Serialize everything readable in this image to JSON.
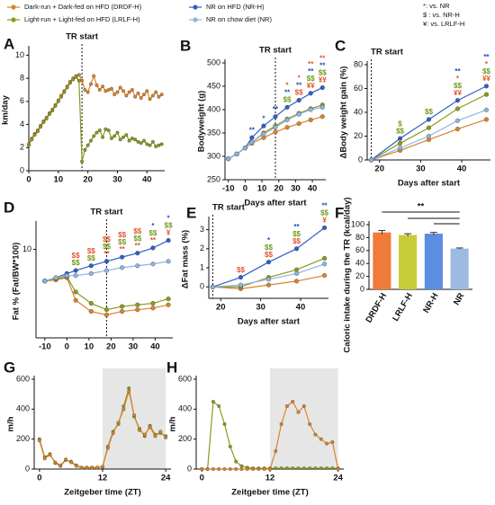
{
  "legend_title": null,
  "significance_key": [
    "*: vs. NR",
    "$ : vs. NR-H",
    "¥: vs. LRLF-H"
  ],
  "chart_data": [
    {
      "panel": "A",
      "type": "line",
      "ylabel": "km/day",
      "xlim": [
        0,
        46
      ],
      "ylim": [
        0,
        10.5
      ],
      "xticks": [
        0,
        10,
        20,
        30,
        40
      ],
      "yticks": [
        0,
        2,
        4,
        6,
        8,
        10
      ],
      "tr_start": {
        "x": 18,
        "label": "TR start"
      },
      "x": [
        0,
        1,
        2,
        3,
        4,
        5,
        6,
        7,
        8,
        9,
        10,
        11,
        12,
        13,
        14,
        15,
        16,
        17,
        18,
        19,
        20,
        21,
        22,
        23,
        24,
        25,
        26,
        27,
        28,
        29,
        30,
        31,
        32,
        33,
        34,
        35,
        36,
        37,
        38,
        39,
        40,
        41,
        42,
        43,
        44,
        45
      ],
      "series": [
        {
          "color": "#d9822b",
          "values": [
            2.3,
            2.8,
            3.2,
            3.5,
            3.9,
            4.3,
            4.6,
            5.0,
            5.3,
            5.7,
            6.1,
            6.5,
            6.9,
            7.3,
            7.7,
            8.0,
            8.2,
            8.3,
            7.8,
            7.0,
            6.8,
            7.5,
            8.2,
            7.4,
            7.0,
            7.3,
            6.9,
            7.0,
            7.1,
            6.6,
            6.8,
            7.2,
            6.9,
            6.5,
            6.8,
            7.0,
            6.4,
            6.7,
            6.3,
            6.6,
            6.9,
            6.2,
            6.5,
            6.8,
            6.4,
            6.6
          ]
        },
        {
          "color": "#8a9a1e",
          "values": [
            2.2,
            2.7,
            3.1,
            3.4,
            3.8,
            4.2,
            4.5,
            4.9,
            5.2,
            5.6,
            6.0,
            6.4,
            6.8,
            7.2,
            7.6,
            7.9,
            8.1,
            7.8,
            0.8,
            1.8,
            2.2,
            2.6,
            3.0,
            3.3,
            3.5,
            2.9,
            3.6,
            3.5,
            2.8,
            3.0,
            3.3,
            2.7,
            2.9,
            3.1,
            2.6,
            2.8,
            2.7,
            2.5,
            2.4,
            2.6,
            2.3,
            2.2,
            2.5,
            2.1,
            2.2,
            2.3
          ]
        }
      ]
    },
    {
      "panel": "B",
      "type": "line",
      "ylabel": "Bodyweight (g)",
      "xlabel": "Days after start",
      "xlim": [
        -12,
        48
      ],
      "ylim": [
        250,
        500
      ],
      "xticks": [
        -10,
        0,
        10,
        20,
        30,
        40
      ],
      "yticks": [
        250,
        300,
        350,
        400,
        450,
        500
      ],
      "tr_start": {
        "x": 18,
        "label": "TR start"
      },
      "x": [
        -10,
        -5,
        0,
        4,
        11,
        18,
        25,
        32,
        39,
        46
      ],
      "series": [
        {
          "name": "Dark-run + Dark-fed on HFD (DRDF-H)",
          "color": "#d9822b",
          "values": [
            295,
            305,
            318,
            328,
            340,
            352,
            362,
            370,
            378,
            385
          ]
        },
        {
          "name": "Light-run + Light-fed on HFD (LRLF-H)",
          "color": "#8a9a1e",
          "values": [
            295,
            305,
            318,
            330,
            350,
            365,
            380,
            392,
            402,
            410
          ]
        },
        {
          "name": "NR on HFD (NR-H)",
          "color": "#2f5fc4",
          "values": [
            295,
            305,
            318,
            340,
            365,
            385,
            405,
            420,
            435,
            447
          ]
        },
        {
          "name": "NR on chow diet (NR)",
          "color": "#8fb3e0",
          "values": [
            295,
            305,
            318,
            330,
            348,
            362,
            378,
            390,
            400,
            405
          ]
        }
      ],
      "sig": [
        {
          "x": 4,
          "labels": [
            {
              "text": "**",
              "color": "#1f4fbf"
            }
          ]
        },
        {
          "x": 11,
          "labels": [
            {
              "text": "*",
              "color": "#1f4fbf"
            }
          ]
        },
        {
          "x": 18,
          "labels": [
            {
              "text": "**",
              "color": "#1f4fbf"
            }
          ]
        },
        {
          "x": 25,
          "labels": [
            {
              "text": "$$",
              "color": "#6f9a1e"
            },
            {
              "text": "**",
              "color": "#1f4fbf"
            },
            {
              "text": "*",
              "color": "#e5542b"
            }
          ]
        },
        {
          "x": 32,
          "labels": [
            {
              "text": "$$",
              "color": "#e5542b"
            },
            {
              "text": "**",
              "color": "#1f4fbf"
            },
            {
              "text": "*",
              "color": "#e5542b"
            }
          ]
        },
        {
          "x": 39,
          "labels": [
            {
              "text": "¥¥",
              "color": "#e5542b"
            },
            {
              "text": "$$",
              "color": "#6f9a1e"
            },
            {
              "text": "**",
              "color": "#1f4fbf"
            },
            {
              "text": "**",
              "color": "#e5542b"
            }
          ]
        },
        {
          "x": 46,
          "labels": [
            {
              "text": "¥¥",
              "color": "#e5542b"
            },
            {
              "text": "$$",
              "color": "#6f9a1e"
            },
            {
              "text": "**",
              "color": "#1f4fbf"
            },
            {
              "text": "**",
              "color": "#e5542b"
            }
          ]
        }
      ]
    },
    {
      "panel": "C",
      "type": "line",
      "ylabel": "ΔBody weight gain (%)",
      "xlabel": "Days after start",
      "xlim": [
        17,
        47
      ],
      "ylim": [
        0,
        80
      ],
      "xticks": [
        20,
        30,
        40
      ],
      "yticks": [
        0,
        20,
        40,
        60,
        80
      ],
      "tr_start": {
        "x": 18,
        "label": "TR start"
      },
      "x": [
        18,
        25,
        32,
        39,
        46
      ],
      "series": [
        {
          "color": "#d9822b",
          "values": [
            0,
            8,
            17,
            26,
            34
          ]
        },
        {
          "color": "#8a9a1e",
          "values": [
            0,
            14,
            27,
            43,
            55
          ]
        },
        {
          "color": "#2f5fc4",
          "values": [
            0,
            18,
            34,
            50,
            62
          ]
        },
        {
          "color": "#8fb3e0",
          "values": [
            0,
            10,
            20,
            33,
            42
          ]
        }
      ],
      "sig": [
        {
          "x": 25,
          "labels": [
            {
              "text": "$$",
              "color": "#6f9a1e"
            },
            {
              "text": "$",
              "color": "#6f9a1e"
            }
          ]
        },
        {
          "x": 32,
          "labels": [
            {
              "text": "$$",
              "color": "#6f9a1e"
            }
          ]
        },
        {
          "x": 39,
          "labels": [
            {
              "text": "¥¥",
              "color": "#e5542b"
            },
            {
              "text": "$$",
              "color": "#6f9a1e"
            },
            {
              "text": "*",
              "color": "#e5542b"
            },
            {
              "text": "**",
              "color": "#1f4fbf"
            }
          ]
        },
        {
          "x": 46,
          "labels": [
            {
              "text": "¥¥",
              "color": "#e5542b"
            },
            {
              "text": "$$",
              "color": "#6f9a1e"
            },
            {
              "text": "*",
              "color": "#e5542b"
            },
            {
              "text": "**",
              "color": "#1f4fbf"
            }
          ]
        }
      ]
    },
    {
      "panel": "D",
      "type": "line",
      "ylabel": "Fat % (Fat/BW*100)",
      "ylog": true,
      "xlim": [
        -14,
        48
      ],
      "ylim": [
        3,
        14
      ],
      "xticks": [
        -10,
        0,
        10,
        20,
        30,
        40
      ],
      "yticks": [
        10
      ],
      "tr_start": {
        "x": 18,
        "label": "TR start"
      },
      "x": [
        -10,
        -5,
        0,
        4,
        11,
        18,
        25,
        32,
        39,
        46
      ],
      "series": [
        {
          "color": "#d9822b",
          "values": [
            6.5,
            6.6,
            6.8,
            5.0,
            4.3,
            4.1,
            4.3,
            4.4,
            4.5,
            4.7
          ]
        },
        {
          "color": "#8a9a1e",
          "values": [
            6.5,
            6.7,
            6.9,
            5.6,
            4.8,
            4.4,
            4.6,
            4.7,
            4.8,
            5.1
          ]
        },
        {
          "color": "#2f5fc4",
          "values": [
            6.5,
            6.8,
            7.2,
            7.5,
            8.0,
            8.5,
            9.0,
            9.5,
            10.2,
            11.3
          ]
        },
        {
          "color": "#8fb3e0",
          "values": [
            6.5,
            6.8,
            7.0,
            7.0,
            7.2,
            7.5,
            7.8,
            8.0,
            8.2,
            8.5
          ]
        }
      ],
      "sig": [
        {
          "x": 4,
          "labels": [
            {
              "text": "$$",
              "color": "#6f9a1e"
            },
            {
              "text": "$$",
              "color": "#e5542b"
            }
          ]
        },
        {
          "x": 11,
          "labels": [
            {
              "text": "$$",
              "color": "#6f9a1e"
            },
            {
              "text": "$$",
              "color": "#e5542b"
            }
          ]
        },
        {
          "x": 18,
          "labels": [
            {
              "text": "**",
              "color": "#e5542b"
            },
            {
              "text": "$$",
              "color": "#6f9a1e"
            },
            {
              "text": "$$",
              "color": "#e5542b"
            }
          ]
        },
        {
          "x": 25,
          "labels": [
            {
              "text": "**",
              "color": "#e5542b"
            },
            {
              "text": "$$",
              "color": "#6f9a1e"
            },
            {
              "text": "$$",
              "color": "#e5542b"
            }
          ]
        },
        {
          "x": 32,
          "labels": [
            {
              "text": "**",
              "color": "#e5542b"
            },
            {
              "text": "$$",
              "color": "#6f9a1e"
            },
            {
              "text": "$$",
              "color": "#e5542b"
            }
          ]
        },
        {
          "x": 39,
          "labels": [
            {
              "text": "**",
              "color": "#e5542b"
            },
            {
              "text": "$$",
              "color": "#6f9a1e"
            },
            {
              "text": "*",
              "color": "#1f4fbf"
            }
          ]
        },
        {
          "x": 46,
          "labels": [
            {
              "text": "¥",
              "color": "#e5542b"
            },
            {
              "text": "$$",
              "color": "#6f9a1e"
            },
            {
              "text": "*",
              "color": "#1f4fbf"
            }
          ]
        }
      ]
    },
    {
      "panel": "E",
      "type": "line",
      "ylabel": "ΔFat mass (%)",
      "xlabel": "Days after start",
      "xlim": [
        17,
        47
      ],
      "ylim": [
        -0.6,
        3.5
      ],
      "xticks": [
        20,
        30,
        40
      ],
      "yticks": [
        0,
        1,
        2,
        3
      ],
      "tr_start": {
        "x": 18,
        "label": "TR start"
      },
      "x": [
        18,
        25,
        32,
        39,
        46
      ],
      "series": [
        {
          "color": "#d9822b",
          "values": [
            0,
            -0.1,
            0.1,
            0.3,
            0.6
          ]
        },
        {
          "color": "#8a9a1e",
          "values": [
            0,
            0,
            0.5,
            0.9,
            1.5
          ]
        },
        {
          "color": "#2f5fc4",
          "values": [
            0,
            0.5,
            1.3,
            2.0,
            3.1
          ]
        },
        {
          "color": "#8fb3e0",
          "values": [
            0,
            0.1,
            0.4,
            0.7,
            1.2
          ]
        }
      ],
      "sig": [
        {
          "x": 25,
          "labels": [
            {
              "text": "$$",
              "color": "#e5542b"
            }
          ]
        },
        {
          "x": 32,
          "labels": [
            {
              "text": "$$",
              "color": "#e5542b"
            },
            {
              "text": "$$",
              "color": "#6f9a1e"
            },
            {
              "text": "*",
              "color": "#1f4fbf"
            }
          ]
        },
        {
          "x": 39,
          "labels": [
            {
              "text": "$$",
              "color": "#e5542b"
            },
            {
              "text": "$$",
              "color": "#6f9a1e"
            },
            {
              "text": "**",
              "color": "#1f4fbf"
            }
          ]
        },
        {
          "x": 46,
          "labels": [
            {
              "text": "¥",
              "color": "#e5542b"
            },
            {
              "text": "$$",
              "color": "#6f9a1e"
            },
            {
              "text": "**",
              "color": "#1f4fbf"
            }
          ]
        }
      ]
    },
    {
      "panel": "F",
      "type": "bar",
      "ylabel": "Caloric intake during the TR (kcal/day)",
      "ylim": [
        0,
        100
      ],
      "yticks": [
        0,
        20,
        40,
        60,
        80,
        100
      ],
      "categories": [
        "DRDF-H",
        "LRLF-H",
        "NR-H",
        "NR"
      ],
      "values": [
        88,
        84,
        86,
        63
      ],
      "errors": [
        3,
        2,
        2,
        1
      ],
      "colors": [
        "#f07a3a",
        "#c8cc3a",
        "#5b8de0",
        "#9dbbe0"
      ],
      "sig_label": "**"
    },
    {
      "panel": "G",
      "type": "line",
      "ylabel": "m/h",
      "xlabel": "Zeitgeber time (ZT)",
      "xlim": [
        -1,
        25
      ],
      "ylim": [
        0,
        600
      ],
      "xticks": [
        0,
        12,
        24
      ],
      "yticks": [
        0,
        200,
        400,
        600
      ],
      "dark_phase": [
        12,
        24
      ],
      "x": [
        0,
        1,
        2,
        3,
        4,
        5,
        6,
        7,
        8,
        9,
        10,
        11,
        12,
        13,
        14,
        15,
        16,
        17,
        18,
        19,
        20,
        21,
        22,
        23,
        24
      ],
      "series": [
        {
          "color": "#8a9a1e",
          "values": [
            200,
            80,
            100,
            40,
            20,
            60,
            50,
            25,
            10,
            10,
            10,
            10,
            15,
            150,
            250,
            300,
            420,
            540,
            350,
            270,
            220,
            290,
            230,
            240,
            220
          ]
        },
        {
          "color": "#d9822b",
          "values": [
            190,
            70,
            95,
            45,
            25,
            65,
            45,
            20,
            10,
            10,
            10,
            10,
            15,
            140,
            240,
            310,
            400,
            520,
            360,
            260,
            230,
            280,
            220,
            250,
            210
          ]
        }
      ]
    },
    {
      "panel": "H",
      "type": "line",
      "ylabel": "m/h",
      "xlabel": "Zeitgeber time (ZT)",
      "xlim": [
        -1,
        25
      ],
      "ylim": [
        0,
        600
      ],
      "xticks": [
        0,
        12,
        24
      ],
      "yticks": [
        0,
        200,
        400,
        600
      ],
      "dark_phase": [
        12,
        24
      ],
      "x": [
        0,
        1,
        2,
        3,
        4,
        5,
        6,
        7,
        8,
        9,
        10,
        11,
        12,
        13,
        14,
        15,
        16,
        17,
        18,
        19,
        20,
        21,
        22,
        23,
        24
      ],
      "series": [
        {
          "color": "#8a9a1e",
          "values": [
            0,
            0,
            450,
            420,
            300,
            150,
            50,
            20,
            10,
            5,
            5,
            5,
            5,
            5,
            5,
            5,
            5,
            5,
            5,
            5,
            5,
            5,
            5,
            5,
            5
          ]
        },
        {
          "color": "#d9822b",
          "values": [
            0,
            0,
            0,
            0,
            0,
            0,
            0,
            0,
            0,
            0,
            0,
            0,
            0,
            120,
            300,
            420,
            450,
            380,
            420,
            300,
            230,
            200,
            170,
            180,
            0
          ]
        }
      ]
    }
  ]
}
